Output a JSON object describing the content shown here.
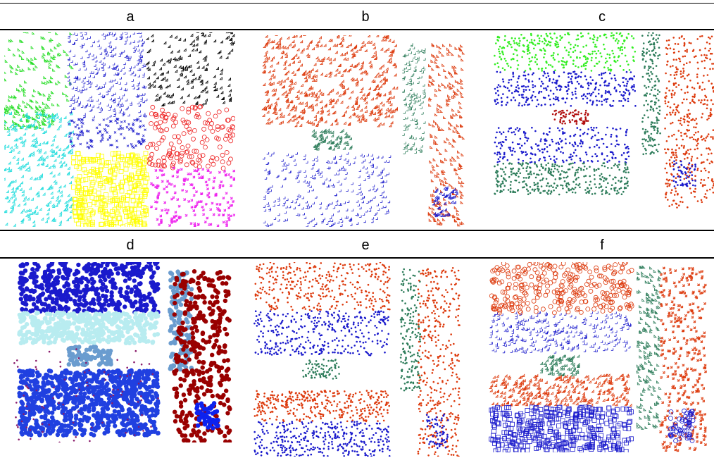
{
  "figure": {
    "panel_labels": [
      "a",
      "b",
      "c",
      "d",
      "e",
      "f"
    ]
  },
  "chart_data": [
    {
      "type": "scatter",
      "label": "a",
      "series": [
        {
          "shape": "tri-right",
          "color": "#22dd22",
          "density": 40,
          "region": [
            0.0,
            0.0,
            0.3,
            0.38
          ]
        },
        {
          "shape": "tri-right",
          "color": "#22dd22",
          "density": 30,
          "region": [
            0.0,
            0.38,
            0.22,
            0.5
          ]
        },
        {
          "shape": "plus",
          "color": "#1a1acc",
          "density": 110,
          "region": [
            0.28,
            0.0,
            0.62,
            0.45
          ]
        },
        {
          "shape": "x",
          "color": "#1a1acc",
          "density": 40,
          "region": [
            0.28,
            0.45,
            0.62,
            0.6
          ]
        },
        {
          "shape": "tri-up",
          "color": "#22dddd",
          "density": 100,
          "region": [
            0.0,
            0.42,
            0.3,
            1.0
          ]
        },
        {
          "shape": "square",
          "color": "#ffff00",
          "density": 110,
          "region": [
            0.3,
            0.62,
            0.62,
            1.0
          ]
        },
        {
          "shape": "diamond",
          "color": "#000000",
          "density": 60,
          "region": [
            0.62,
            0.0,
            1.0,
            0.38
          ]
        },
        {
          "shape": "circle",
          "color": "#ee2222",
          "density": 50,
          "region": [
            0.62,
            0.38,
            1.0,
            0.7
          ]
        },
        {
          "shape": "star",
          "color": "#ee22ee",
          "density": 60,
          "region": [
            0.64,
            0.7,
            1.0,
            1.0
          ]
        }
      ]
    },
    {
      "type": "scatter",
      "label": "b",
      "series": [
        {
          "shape": "tri-up",
          "color": "#dd3b0e",
          "density": 100,
          "region": [
            0.03,
            0.0,
            0.65,
            0.3
          ]
        },
        {
          "shape": "diamond",
          "color": "#dd3b0e",
          "density": 80,
          "region": [
            0.03,
            0.3,
            0.65,
            0.48
          ]
        },
        {
          "shape": "diamond",
          "color": "#2e7d5b",
          "density": 25,
          "region": [
            0.26,
            0.5,
            0.44,
            0.6
          ]
        },
        {
          "shape": "plus",
          "color": "#1a1acc",
          "density": 100,
          "region": [
            0.03,
            0.62,
            0.62,
            1.0
          ]
        },
        {
          "shape": "plus",
          "color": "#2e7d5b",
          "density": 50,
          "region": [
            0.68,
            0.05,
            0.78,
            0.62
          ]
        },
        {
          "shape": "tri-right",
          "color": "#dd3b0e",
          "density": 80,
          "region": [
            0.8,
            0.05,
            0.96,
            1.0
          ]
        },
        {
          "shape": "diamond",
          "color": "#1a1acc",
          "density": 15,
          "region": [
            0.82,
            0.8,
            0.93,
            0.95
          ]
        }
      ]
    },
    {
      "type": "scatter",
      "label": "c",
      "series": [
        {
          "shape": "dot",
          "color": "#33ee22",
          "density": 110,
          "region": [
            0.02,
            0.0,
            0.65,
            0.22
          ]
        },
        {
          "shape": "dot",
          "color": "#1a1acc",
          "density": 110,
          "region": [
            0.02,
            0.22,
            0.65,
            0.42
          ]
        },
        {
          "shape": "dot",
          "color": "#b21111",
          "density": 25,
          "region": [
            0.28,
            0.44,
            0.44,
            0.52
          ]
        },
        {
          "shape": "dot",
          "color": "#1a1acc",
          "density": 90,
          "region": [
            0.02,
            0.54,
            0.62,
            0.74
          ]
        },
        {
          "shape": "dot",
          "color": "#2e7d5b",
          "density": 120,
          "region": [
            0.02,
            0.74,
            0.62,
            0.92
          ]
        },
        {
          "shape": "dot",
          "color": "#2e7d5b",
          "density": 60,
          "region": [
            0.68,
            0.0,
            0.76,
            0.7
          ]
        },
        {
          "shape": "dot",
          "color": "#dd3b0e",
          "density": 140,
          "region": [
            0.78,
            0.02,
            1.0,
            1.0
          ]
        },
        {
          "shape": "dot",
          "color": "#1a1acc",
          "density": 20,
          "region": [
            0.82,
            0.72,
            0.92,
            0.88
          ]
        }
      ]
    },
    {
      "type": "scatter",
      "label": "d",
      "series": [
        {
          "shape": "blob",
          "color": "#1a1acc",
          "density": 160,
          "region": [
            0.03,
            0.0,
            0.65,
            0.28
          ]
        },
        {
          "shape": "blob",
          "color": "#b8ecf0",
          "density": 140,
          "region": [
            0.03,
            0.28,
            0.65,
            0.45
          ]
        },
        {
          "shape": "blob",
          "color": "#6a9ccf",
          "density": 30,
          "region": [
            0.25,
            0.47,
            0.44,
            0.57
          ]
        },
        {
          "shape": "blob",
          "color": "#2040e0",
          "density": 140,
          "region": [
            0.03,
            0.6,
            0.65,
            0.76
          ]
        },
        {
          "shape": "blob",
          "color": "#2040e0",
          "density": 140,
          "region": [
            0.03,
            0.76,
            0.65,
            0.96
          ]
        },
        {
          "shape": "dot",
          "color": "#8a1a6a",
          "density": 30,
          "region": [
            0.0,
            0.48,
            0.65,
            1.0
          ]
        },
        {
          "shape": "blob",
          "color": "#6a9ccf",
          "density": 50,
          "region": [
            0.7,
            0.05,
            0.8,
            0.6
          ]
        },
        {
          "shape": "blob",
          "color": "#990000",
          "density": 120,
          "region": [
            0.72,
            0.05,
            0.97,
            1.0
          ]
        },
        {
          "shape": "blob",
          "color": "#0d22ee",
          "density": 18,
          "region": [
            0.82,
            0.78,
            0.92,
            0.92
          ]
        }
      ]
    },
    {
      "type": "scatter",
      "label": "e",
      "series": [
        {
          "shape": "dot",
          "color": "#dd3b0e",
          "density": 120,
          "region": [
            0.03,
            0.0,
            0.65,
            0.25
          ]
        },
        {
          "shape": "dot",
          "color": "#1a1acc",
          "density": 120,
          "region": [
            0.03,
            0.25,
            0.65,
            0.48
          ]
        },
        {
          "shape": "dot",
          "color": "#2e7d5b",
          "density": 25,
          "region": [
            0.25,
            0.5,
            0.42,
            0.6
          ]
        },
        {
          "shape": "dot",
          "color": "#dd3b0e",
          "density": 120,
          "region": [
            0.03,
            0.66,
            0.65,
            0.82
          ]
        },
        {
          "shape": "dot",
          "color": "#1a1acc",
          "density": 120,
          "region": [
            0.03,
            0.82,
            0.65,
            1.0
          ]
        },
        {
          "shape": "dot",
          "color": "#2e7d5b",
          "density": 60,
          "region": [
            0.7,
            0.03,
            0.79,
            0.66
          ]
        },
        {
          "shape": "dot",
          "color": "#dd3b0e",
          "density": 130,
          "region": [
            0.78,
            0.03,
            0.97,
            1.0
          ]
        },
        {
          "shape": "dot",
          "color": "#1a1acc",
          "density": 20,
          "region": [
            0.82,
            0.78,
            0.92,
            0.96
          ]
        }
      ]
    },
    {
      "type": "scatter",
      "label": "f",
      "series": [
        {
          "shape": "circle",
          "color": "#dd3b0e",
          "density": 100,
          "region": [
            0.03,
            0.0,
            0.65,
            0.27
          ]
        },
        {
          "shape": "plus",
          "color": "#1a1acc",
          "density": 100,
          "region": [
            0.03,
            0.27,
            0.65,
            0.48
          ]
        },
        {
          "shape": "diamond",
          "color": "#2e7d5b",
          "density": 25,
          "region": [
            0.25,
            0.5,
            0.42,
            0.6
          ]
        },
        {
          "shape": "tri-up",
          "color": "#dd3b0e",
          "density": 100,
          "region": [
            0.03,
            0.6,
            0.65,
            0.76
          ]
        },
        {
          "shape": "square",
          "color": "#1a1acc",
          "density": 130,
          "region": [
            0.03,
            0.76,
            0.65,
            1.0
          ]
        },
        {
          "shape": "tri-right",
          "color": "#2e7d5b",
          "density": 60,
          "region": [
            0.68,
            0.03,
            0.78,
            0.88
          ]
        },
        {
          "shape": "star",
          "color": "#dd3b0e",
          "density": 110,
          "region": [
            0.78,
            0.03,
            0.98,
            1.0
          ]
        },
        {
          "shape": "circle",
          "color": "#1a1acc",
          "density": 18,
          "region": [
            0.82,
            0.78,
            0.92,
            0.94
          ]
        }
      ]
    }
  ]
}
